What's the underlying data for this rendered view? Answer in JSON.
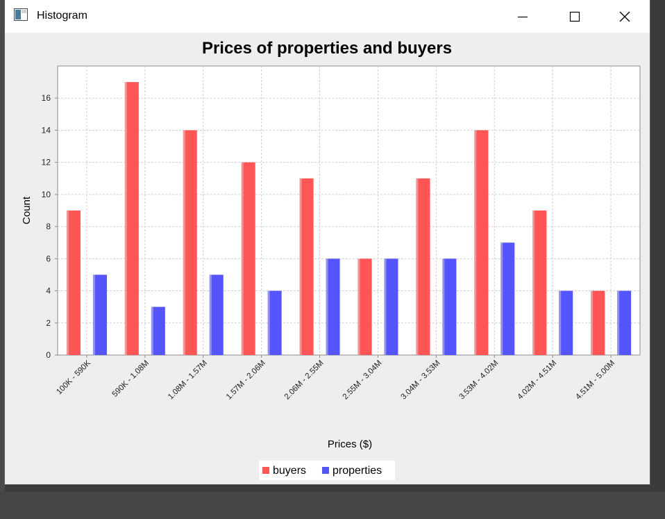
{
  "window": {
    "title": "Histogram",
    "icon": "java-window-icon",
    "controls": [
      "minimize-icon",
      "maximize-icon",
      "close-icon"
    ]
  },
  "chart_data": {
    "type": "bar",
    "title": "Prices of properties and buyers",
    "xlabel": "Prices ($)",
    "ylabel": "Count",
    "ylim": [
      0,
      18
    ],
    "yticks": [
      0,
      2,
      4,
      6,
      8,
      10,
      12,
      14,
      16
    ],
    "grid": true,
    "legend_position": "bottom-center",
    "categories": [
      "100K - 590K",
      "590K - 1.08M",
      "1.08M - 1.57M",
      "1.57M - 2.06M",
      "2.06M - 2.55M",
      "2.55M - 3.04M",
      "3.04M - 3.53M",
      "3.53M - 4.02M",
      "4.02M - 4.51M",
      "4.51M - 5.00M"
    ],
    "series": [
      {
        "name": "buyers",
        "color": "#ff5555",
        "values": [
          9,
          17,
          14,
          12,
          11,
          6,
          11,
          14,
          9,
          4
        ]
      },
      {
        "name": "properties",
        "color": "#5555ff",
        "values": [
          5,
          3,
          5,
          4,
          6,
          6,
          6,
          7,
          4,
          4
        ]
      }
    ]
  }
}
